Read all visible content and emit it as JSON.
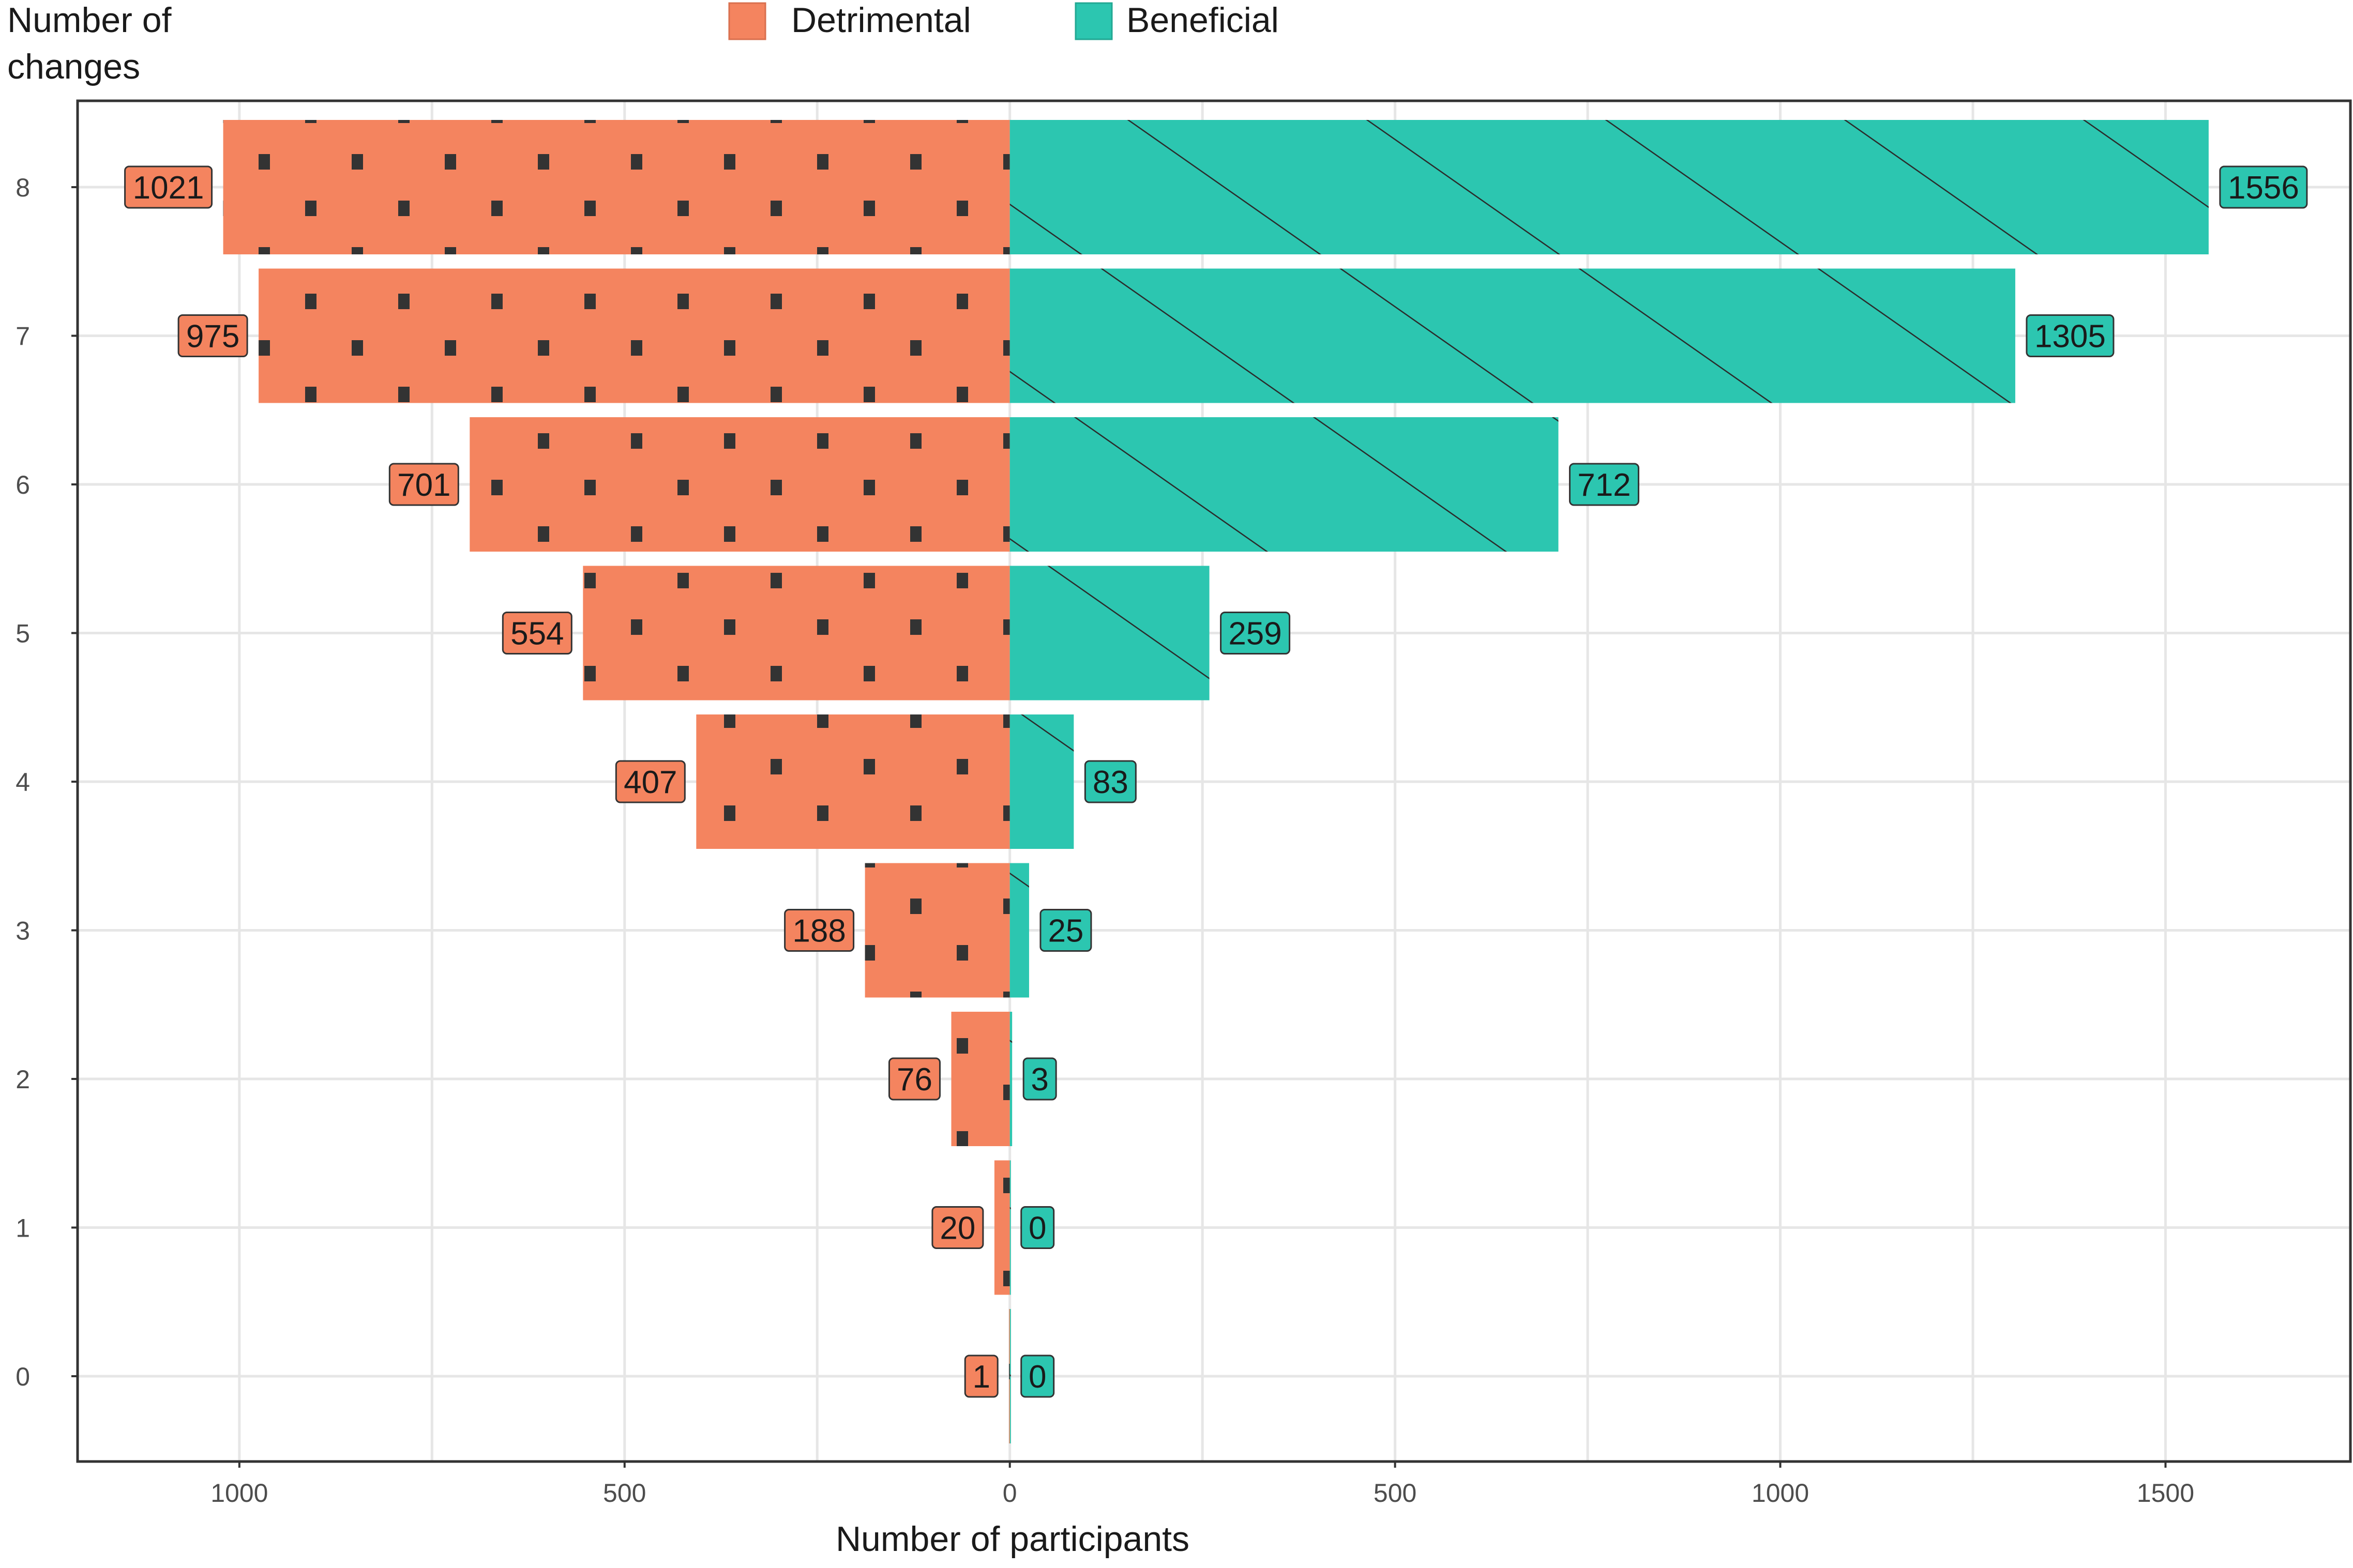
{
  "chart_data": {
    "type": "bar",
    "orientation": "horizontal-diverging",
    "title": "",
    "ylabel_lines": [
      "Number of",
      "changes"
    ],
    "xlabel": "Number of participants",
    "categories": [
      "0",
      "1",
      "2",
      "3",
      "4",
      "5",
      "6",
      "7",
      "8"
    ],
    "series": [
      {
        "name": "Detrimental",
        "direction": "left",
        "color": "#F4845F",
        "pattern": "dots",
        "values": [
          1,
          20,
          76,
          188,
          407,
          554,
          701,
          975,
          1021
        ]
      },
      {
        "name": "Beneficial",
        "direction": "right",
        "color": "#2CC6B0",
        "pattern": "hatch",
        "values": [
          0,
          0,
          3,
          25,
          83,
          259,
          712,
          1305,
          1556
        ]
      }
    ],
    "xlim": [
      -1210,
      1740
    ],
    "x_ticks": [
      -1000,
      -500,
      0,
      500,
      1000,
      1500
    ],
    "x_tick_labels": [
      "1000",
      "500",
      "0",
      "500",
      "1000",
      "1500"
    ],
    "legend_position": "top-center",
    "grid": true
  }
}
